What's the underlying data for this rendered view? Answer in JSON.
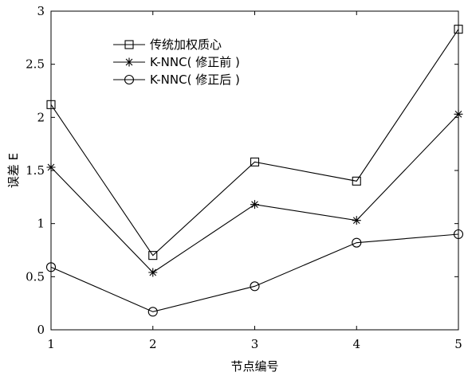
{
  "chart_data": {
    "type": "line",
    "title": "",
    "xlabel": "节点编号",
    "ylabel": "误差 E",
    "x": [
      1,
      2,
      3,
      4,
      5
    ],
    "xlim": [
      1,
      5
    ],
    "ylim": [
      0,
      3
    ],
    "xticks": [
      "1",
      "2",
      "3",
      "4",
      "5"
    ],
    "yticks": [
      "0",
      "0.5",
      "1",
      "1.5",
      "2",
      "2.5",
      "3"
    ],
    "grid": false,
    "legend_position": "top-left",
    "series": [
      {
        "name": "传统加权质心",
        "marker": "square",
        "values": [
          2.12,
          0.7,
          1.58,
          1.4,
          2.83
        ]
      },
      {
        "name": "K-NNC( 修正前 )",
        "marker": "star",
        "values": [
          1.53,
          0.54,
          1.18,
          1.03,
          2.03
        ]
      },
      {
        "name": "K-NNC( 修正后 )",
        "marker": "circle",
        "values": [
          0.59,
          0.17,
          0.41,
          0.82,
          0.9
        ]
      }
    ],
    "line_color": "#000000"
  }
}
